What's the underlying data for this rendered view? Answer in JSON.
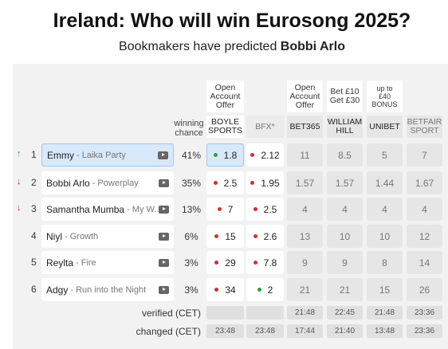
{
  "page": {
    "title": "Ireland: Who will win Eurosong 2025?",
    "subtitle_prefix": "Bookmakers have predicted",
    "subtitle_name": "Bobbi Arlo"
  },
  "header": {
    "winning_chance": [
      "winning",
      "chance"
    ],
    "offers": {
      "boyle": [
        "Open",
        "Account",
        "Offer"
      ],
      "bet365": [
        "Open",
        "Account",
        "Offer"
      ],
      "williamhill": [
        "Bet £10",
        "Get £30"
      ],
      "unibet": [
        "up to",
        "£40",
        "BONUS"
      ]
    },
    "bookmakers": {
      "boyle": [
        "BOYLE",
        "SPORTS"
      ],
      "bfx": [
        "BFX*"
      ],
      "bet365": [
        "BET365"
      ],
      "williamhill": [
        "WILLIAM",
        "HILL"
      ],
      "unibet": [
        "UNIBET"
      ],
      "betfair": [
        "BETFAIR",
        "SPORT"
      ]
    }
  },
  "rows": [
    {
      "trend": "up",
      "rank": "1",
      "artist": "Emmy",
      "song": "- Laika Party",
      "chance": "41%",
      "boyle": "1.8",
      "boyle_dot": "green",
      "bfx": "2.12",
      "bfx_dot": "red",
      "bet365": "11",
      "williamhill": "8.5",
      "unibet": "5",
      "betfair": "7"
    },
    {
      "trend": "down",
      "rank": "2",
      "artist": "Bobbi Arlo",
      "song": "- Powerplay",
      "chance": "35%",
      "boyle": "2.5",
      "boyle_dot": "red",
      "bfx": "1.95",
      "bfx_dot": "red",
      "bet365": "1.57",
      "williamhill": "1.57",
      "unibet": "1.44",
      "betfair": "1.67"
    },
    {
      "trend": "down",
      "rank": "3",
      "artist": "Samantha Mumba",
      "song": "- My W...",
      "chance": "13%",
      "boyle": "7",
      "boyle_dot": "red",
      "bfx": "2.5",
      "bfx_dot": "red",
      "bet365": "4",
      "williamhill": "4",
      "unibet": "4",
      "betfair": "4"
    },
    {
      "trend": "",
      "rank": "4",
      "artist": "Niyl",
      "song": "- Growth",
      "chance": "6%",
      "boyle": "15",
      "boyle_dot": "red",
      "bfx": "2.6",
      "bfx_dot": "red",
      "bet365": "13",
      "williamhill": "10",
      "unibet": "10",
      "betfair": "12"
    },
    {
      "trend": "",
      "rank": "5",
      "artist": "Reylta",
      "song": "- Fire",
      "chance": "3%",
      "boyle": "29",
      "boyle_dot": "red",
      "bfx": "7.8",
      "bfx_dot": "red",
      "bet365": "9",
      "williamhill": "9",
      "unibet": "8",
      "betfair": "14"
    },
    {
      "trend": "",
      "rank": "6",
      "artist": "Adgy",
      "song": "- Run into the Night",
      "chance": "3%",
      "boyle": "34",
      "boyle_dot": "red",
      "bfx": "2",
      "bfx_dot": "green",
      "bet365": "21",
      "williamhill": "21",
      "unibet": "15",
      "betfair": "26"
    }
  ],
  "footer": {
    "verified_label": "verified (CET)",
    "changed_label": "changed (CET)",
    "verified": {
      "boyle": "",
      "bfx": "",
      "bet365": "21:48",
      "williamhill": "22:45",
      "unibet": "21:48",
      "betfair": "23:36"
    },
    "changed": {
      "boyle": "23:48",
      "bfx": "23:48",
      "bet365": "17:44",
      "williamhill": "21:40",
      "unibet": "13:48",
      "betfair": "23:36"
    }
  },
  "colors": {
    "trend_up": "#2a9d3a",
    "trend_down": "#c62828",
    "dot_red": "#d32f2f",
    "dot_green": "#2e9e3e",
    "selected_bg": "#d7e9fb"
  },
  "icons": {
    "youtube": "youtube-icon"
  }
}
